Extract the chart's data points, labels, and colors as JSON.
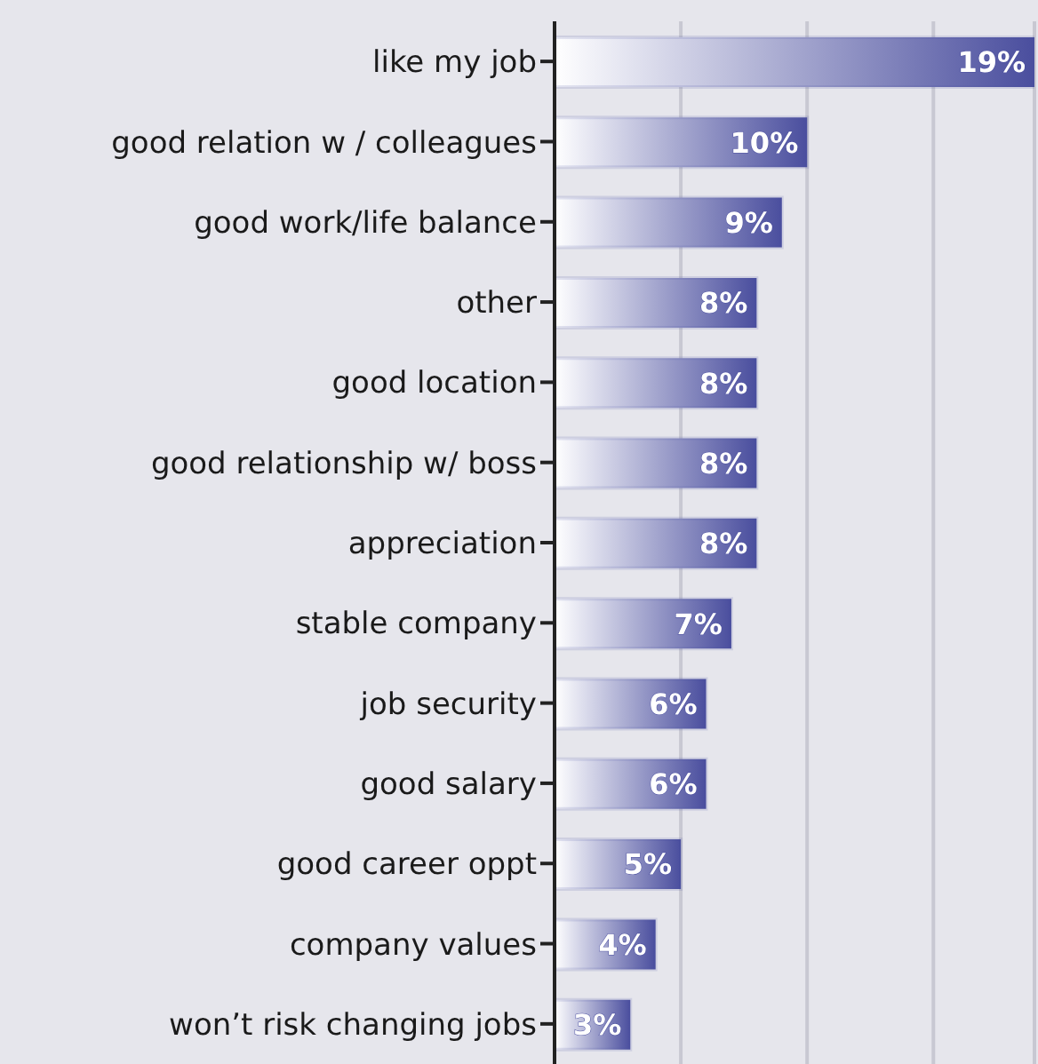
{
  "chart_data": {
    "type": "bar",
    "orientation": "horizontal",
    "categories": [
      "like my job",
      "good relation w / colleagues",
      "good work/life balance",
      "other",
      "good location",
      "good relationship w/ boss",
      "appreciation",
      "stable company",
      "job security",
      "good salary",
      "good career oppt",
      "company values",
      "won’t risk changing jobs"
    ],
    "values": [
      19,
      10,
      9,
      8,
      8,
      8,
      8,
      7,
      6,
      6,
      5,
      4,
      3
    ],
    "value_labels": [
      "19%",
      "10%",
      "9%",
      "8%",
      "8%",
      "8%",
      "8%",
      "7%",
      "6%",
      "6%",
      "5%",
      "4%",
      "3%"
    ],
    "color": "#4a4e9e",
    "xlim": [
      0,
      19
    ],
    "xticks": [
      {
        "value": 5,
        "label": null
      },
      {
        "value": 10,
        "label": null
      },
      {
        "value": 15,
        "label": null
      }
    ],
    "grid": "x",
    "tick_labels": "y"
  }
}
